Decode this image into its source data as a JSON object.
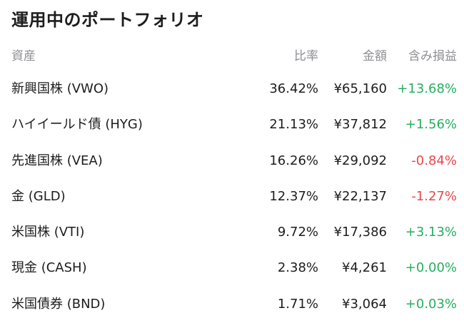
{
  "title": "運用中のポートフォリオ",
  "columns": {
    "name": "資産",
    "ratio": "比率",
    "amount": "金額",
    "pnl": "含み損益"
  },
  "colors": {
    "positive": "#27ae60",
    "negative": "#e5484d",
    "header_text": "#8e8e93"
  },
  "rows": [
    {
      "name": "新興国株 (VWO)",
      "ratio": "36.42%",
      "amount": "¥65,160",
      "pnl": "+13.68%",
      "pnl_sign": "pos"
    },
    {
      "name": "ハイイールド債 (HYG)",
      "ratio": "21.13%",
      "amount": "¥37,812",
      "pnl": "+1.56%",
      "pnl_sign": "pos"
    },
    {
      "name": "先進国株 (VEA)",
      "ratio": "16.26%",
      "amount": "¥29,092",
      "pnl": "-0.84%",
      "pnl_sign": "neg"
    },
    {
      "name": "金 (GLD)",
      "ratio": "12.37%",
      "amount": "¥22,137",
      "pnl": "-1.27%",
      "pnl_sign": "neg"
    },
    {
      "name": "米国株 (VTI)",
      "ratio": "9.72%",
      "amount": "¥17,386",
      "pnl": "+3.13%",
      "pnl_sign": "pos"
    },
    {
      "name": "現金 (CASH)",
      "ratio": "2.38%",
      "amount": "¥4,261",
      "pnl": "+0.00%",
      "pnl_sign": "pos"
    },
    {
      "name": "米国債券 (BND)",
      "ratio": "1.71%",
      "amount": "¥3,064",
      "pnl": "+0.03%",
      "pnl_sign": "pos"
    }
  ]
}
